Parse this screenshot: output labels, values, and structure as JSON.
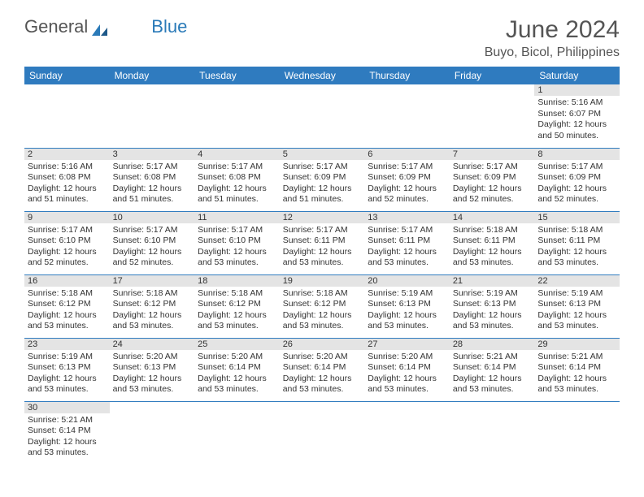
{
  "brand": {
    "part1": "General",
    "part2": "Blue"
  },
  "header": {
    "title": "June 2024",
    "location": "Buyo, Bicol, Philippines"
  },
  "colors": {
    "header_bg": "#2f7bbf",
    "header_fg": "#ffffff",
    "daynum_bg": "#e4e4e4",
    "border": "#2f7bbf",
    "brand_blue": "#2a7ab8"
  },
  "daynames": [
    "Sunday",
    "Monday",
    "Tuesday",
    "Wednesday",
    "Thursday",
    "Friday",
    "Saturday"
  ],
  "weeks": [
    [
      null,
      null,
      null,
      null,
      null,
      null,
      {
        "n": "1",
        "sunrise": "5:16 AM",
        "sunset": "6:07 PM",
        "daylight": "12 hours and 50 minutes."
      }
    ],
    [
      {
        "n": "2",
        "sunrise": "5:16 AM",
        "sunset": "6:08 PM",
        "daylight": "12 hours and 51 minutes."
      },
      {
        "n": "3",
        "sunrise": "5:17 AM",
        "sunset": "6:08 PM",
        "daylight": "12 hours and 51 minutes."
      },
      {
        "n": "4",
        "sunrise": "5:17 AM",
        "sunset": "6:08 PM",
        "daylight": "12 hours and 51 minutes."
      },
      {
        "n": "5",
        "sunrise": "5:17 AM",
        "sunset": "6:09 PM",
        "daylight": "12 hours and 51 minutes."
      },
      {
        "n": "6",
        "sunrise": "5:17 AM",
        "sunset": "6:09 PM",
        "daylight": "12 hours and 52 minutes."
      },
      {
        "n": "7",
        "sunrise": "5:17 AM",
        "sunset": "6:09 PM",
        "daylight": "12 hours and 52 minutes."
      },
      {
        "n": "8",
        "sunrise": "5:17 AM",
        "sunset": "6:09 PM",
        "daylight": "12 hours and 52 minutes."
      }
    ],
    [
      {
        "n": "9",
        "sunrise": "5:17 AM",
        "sunset": "6:10 PM",
        "daylight": "12 hours and 52 minutes."
      },
      {
        "n": "10",
        "sunrise": "5:17 AM",
        "sunset": "6:10 PM",
        "daylight": "12 hours and 52 minutes."
      },
      {
        "n": "11",
        "sunrise": "5:17 AM",
        "sunset": "6:10 PM",
        "daylight": "12 hours and 53 minutes."
      },
      {
        "n": "12",
        "sunrise": "5:17 AM",
        "sunset": "6:11 PM",
        "daylight": "12 hours and 53 minutes."
      },
      {
        "n": "13",
        "sunrise": "5:17 AM",
        "sunset": "6:11 PM",
        "daylight": "12 hours and 53 minutes."
      },
      {
        "n": "14",
        "sunrise": "5:18 AM",
        "sunset": "6:11 PM",
        "daylight": "12 hours and 53 minutes."
      },
      {
        "n": "15",
        "sunrise": "5:18 AM",
        "sunset": "6:11 PM",
        "daylight": "12 hours and 53 minutes."
      }
    ],
    [
      {
        "n": "16",
        "sunrise": "5:18 AM",
        "sunset": "6:12 PM",
        "daylight": "12 hours and 53 minutes."
      },
      {
        "n": "17",
        "sunrise": "5:18 AM",
        "sunset": "6:12 PM",
        "daylight": "12 hours and 53 minutes."
      },
      {
        "n": "18",
        "sunrise": "5:18 AM",
        "sunset": "6:12 PM",
        "daylight": "12 hours and 53 minutes."
      },
      {
        "n": "19",
        "sunrise": "5:18 AM",
        "sunset": "6:12 PM",
        "daylight": "12 hours and 53 minutes."
      },
      {
        "n": "20",
        "sunrise": "5:19 AM",
        "sunset": "6:13 PM",
        "daylight": "12 hours and 53 minutes."
      },
      {
        "n": "21",
        "sunrise": "5:19 AM",
        "sunset": "6:13 PM",
        "daylight": "12 hours and 53 minutes."
      },
      {
        "n": "22",
        "sunrise": "5:19 AM",
        "sunset": "6:13 PM",
        "daylight": "12 hours and 53 minutes."
      }
    ],
    [
      {
        "n": "23",
        "sunrise": "5:19 AM",
        "sunset": "6:13 PM",
        "daylight": "12 hours and 53 minutes."
      },
      {
        "n": "24",
        "sunrise": "5:20 AM",
        "sunset": "6:13 PM",
        "daylight": "12 hours and 53 minutes."
      },
      {
        "n": "25",
        "sunrise": "5:20 AM",
        "sunset": "6:14 PM",
        "daylight": "12 hours and 53 minutes."
      },
      {
        "n": "26",
        "sunrise": "5:20 AM",
        "sunset": "6:14 PM",
        "daylight": "12 hours and 53 minutes."
      },
      {
        "n": "27",
        "sunrise": "5:20 AM",
        "sunset": "6:14 PM",
        "daylight": "12 hours and 53 minutes."
      },
      {
        "n": "28",
        "sunrise": "5:21 AM",
        "sunset": "6:14 PM",
        "daylight": "12 hours and 53 minutes."
      },
      {
        "n": "29",
        "sunrise": "5:21 AM",
        "sunset": "6:14 PM",
        "daylight": "12 hours and 53 minutes."
      }
    ],
    [
      {
        "n": "30",
        "sunrise": "5:21 AM",
        "sunset": "6:14 PM",
        "daylight": "12 hours and 53 minutes."
      },
      null,
      null,
      null,
      null,
      null,
      null
    ]
  ],
  "labels": {
    "sunrise": "Sunrise:",
    "sunset": "Sunset:",
    "daylight": "Daylight:"
  }
}
